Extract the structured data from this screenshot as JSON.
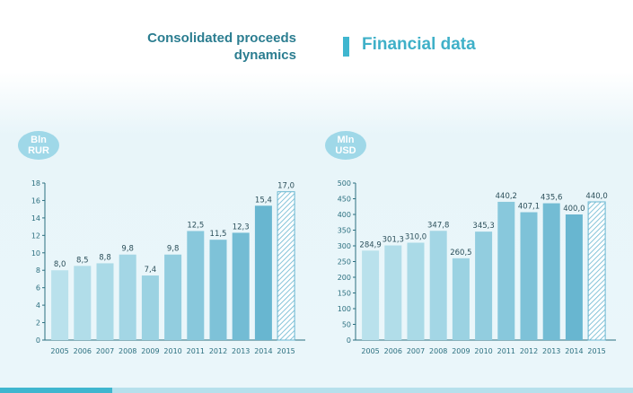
{
  "header": {
    "left_title": "Consolidated proceeds\ndynamics",
    "right_title": "Financial data"
  },
  "colors": {
    "title_dark": "#2b7d90",
    "title_light": "#3fb0c8",
    "badge": "#9fd8e8",
    "axis": "#2b6f7f",
    "value_label": "#2b4f5a",
    "bar_gradient": [
      "#b9e1ec",
      "#b1dde9",
      "#aadae7",
      "#a3d6e5",
      "#9bd2e2",
      "#92cddf",
      "#88c8dc",
      "#7ec2d8",
      "#73bcd4",
      "#68b6d0"
    ],
    "hatch": "#68b6d0"
  },
  "chart_data": [
    {
      "type": "bar",
      "unit_label": "Bln\nRUR",
      "categories": [
        "2005",
        "2006",
        "2007",
        "2008",
        "2009",
        "2010",
        "2011",
        "2012",
        "2013",
        "2014",
        "2015"
      ],
      "values": [
        8.0,
        8.5,
        8.8,
        9.8,
        7.4,
        9.8,
        12.5,
        11.5,
        12.3,
        15.4,
        17.0
      ],
      "value_labels": [
        "8,0",
        "8,5",
        "8,8",
        "9,8",
        "7,4",
        "9,8",
        "12,5",
        "11,5",
        "12,3",
        "15,4",
        "17,0"
      ],
      "hatched_last": true,
      "ylim": [
        0,
        18
      ],
      "yticks": [
        0,
        2,
        4,
        6,
        8,
        10,
        12,
        14,
        16,
        18
      ]
    },
    {
      "type": "bar",
      "unit_label": "Mln\nUSD",
      "categories": [
        "2005",
        "2006",
        "2007",
        "2008",
        "2009",
        "2010",
        "2011",
        "2012",
        "2013",
        "2014",
        "2015"
      ],
      "values": [
        284.9,
        301.3,
        310.0,
        347.8,
        260.5,
        345.3,
        440.2,
        407.1,
        435.6,
        400.0,
        440.0
      ],
      "value_labels": [
        "284,9",
        "301,3",
        "310,0",
        "347,8",
        "260,5",
        "345,3",
        "440,2",
        "407,1",
        "435,6",
        "400,0",
        "440,0"
      ],
      "hatched_last": true,
      "ylim": [
        0,
        500
      ],
      "yticks": [
        0,
        50,
        100,
        150,
        200,
        250,
        300,
        350,
        400,
        450,
        500
      ]
    }
  ]
}
